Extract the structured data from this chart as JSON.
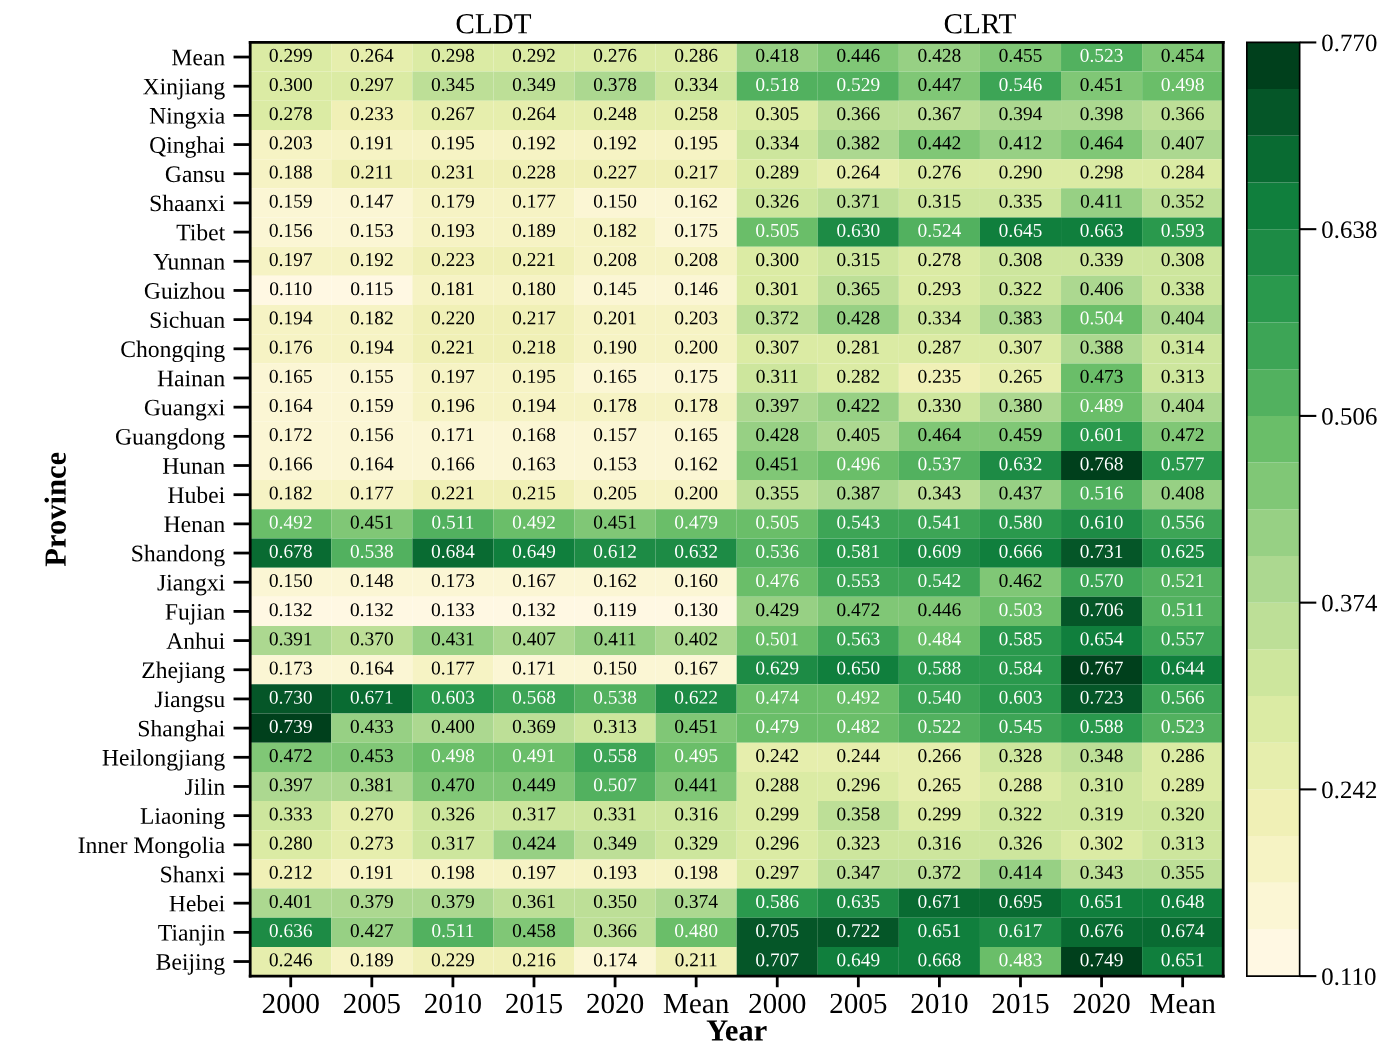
{
  "chart_data": {
    "type": "heatmap",
    "xlabel": "Year",
    "ylabel": "Province",
    "annotations": [
      "CLDT",
      "CLRT"
    ],
    "categories": [
      "2000",
      "2005",
      "2010",
      "2015",
      "2020",
      "Mean",
      "2000",
      "2005",
      "2010",
      "2015",
      "2020",
      "Mean"
    ],
    "y_categories": [
      "Mean",
      "Xinjiang",
      "Ningxia",
      "Qinghai",
      "Gansu",
      "Shaanxi",
      "Tibet",
      "Yunnan",
      "Guizhou",
      "Sichuan",
      "Chongqing",
      "Hainan",
      "Guangxi",
      "Guangdong",
      "Hunan",
      "Hubei",
      "Henan",
      "Shandong",
      "Jiangxi",
      "Fujian",
      "Anhui",
      "Zhejiang",
      "Jiangsu",
      "Shanghai",
      "Heilongjiang",
      "Jilin",
      "Liaoning",
      "Inner Mongolia",
      "Shanxi",
      "Hebei",
      "Tianjin",
      "Beijing"
    ],
    "cells": [
      [
        0.299,
        0.264,
        0.298,
        0.292,
        0.276,
        0.286,
        0.418,
        0.446,
        0.428,
        0.455,
        0.523,
        0.454
      ],
      [
        0.3,
        0.297,
        0.345,
        0.349,
        0.378,
        0.334,
        0.518,
        0.529,
        0.447,
        0.546,
        0.451,
        0.498
      ],
      [
        0.278,
        0.233,
        0.267,
        0.264,
        0.248,
        0.258,
        0.305,
        0.366,
        0.367,
        0.394,
        0.398,
        0.366
      ],
      [
        0.203,
        0.191,
        0.195,
        0.192,
        0.192,
        0.195,
        0.334,
        0.382,
        0.442,
        0.412,
        0.464,
        0.407
      ],
      [
        0.188,
        0.211,
        0.231,
        0.228,
        0.227,
        0.217,
        0.289,
        0.264,
        0.276,
        0.29,
        0.298,
        0.284
      ],
      [
        0.159,
        0.147,
        0.179,
        0.177,
        0.15,
        0.162,
        0.326,
        0.371,
        0.315,
        0.335,
        0.411,
        0.352
      ],
      [
        0.156,
        0.153,
        0.193,
        0.189,
        0.182,
        0.175,
        0.505,
        0.63,
        0.524,
        0.645,
        0.663,
        0.593
      ],
      [
        0.197,
        0.192,
        0.223,
        0.221,
        0.208,
        0.208,
        0.3,
        0.315,
        0.278,
        0.308,
        0.339,
        0.308
      ],
      [
        0.11,
        0.115,
        0.181,
        0.18,
        0.145,
        0.146,
        0.301,
        0.365,
        0.293,
        0.322,
        0.406,
        0.338
      ],
      [
        0.194,
        0.182,
        0.22,
        0.217,
        0.201,
        0.203,
        0.372,
        0.428,
        0.334,
        0.383,
        0.504,
        0.404
      ],
      [
        0.176,
        0.194,
        0.221,
        0.218,
        0.19,
        0.2,
        0.307,
        0.281,
        0.287,
        0.307,
        0.388,
        0.314
      ],
      [
        0.165,
        0.155,
        0.197,
        0.195,
        0.165,
        0.175,
        0.311,
        0.282,
        0.235,
        0.265,
        0.473,
        0.313
      ],
      [
        0.164,
        0.159,
        0.196,
        0.194,
        0.178,
        0.178,
        0.397,
        0.422,
        0.33,
        0.38,
        0.489,
        0.404
      ],
      [
        0.172,
        0.156,
        0.171,
        0.168,
        0.157,
        0.165,
        0.428,
        0.405,
        0.464,
        0.459,
        0.601,
        0.472
      ],
      [
        0.166,
        0.164,
        0.166,
        0.163,
        0.153,
        0.162,
        0.451,
        0.496,
        0.537,
        0.632,
        0.768,
        0.577
      ],
      [
        0.182,
        0.177,
        0.221,
        0.215,
        0.205,
        0.2,
        0.355,
        0.387,
        0.343,
        0.437,
        0.516,
        0.408
      ],
      [
        0.492,
        0.451,
        0.511,
        0.492,
        0.451,
        0.479,
        0.505,
        0.543,
        0.541,
        0.58,
        0.61,
        0.556
      ],
      [
        0.678,
        0.538,
        0.684,
        0.649,
        0.612,
        0.632,
        0.536,
        0.581,
        0.609,
        0.666,
        0.731,
        0.625
      ],
      [
        0.15,
        0.148,
        0.173,
        0.167,
        0.162,
        0.16,
        0.476,
        0.553,
        0.542,
        0.462,
        0.57,
        0.521
      ],
      [
        0.132,
        0.132,
        0.133,
        0.132,
        0.119,
        0.13,
        0.429,
        0.472,
        0.446,
        0.503,
        0.706,
        0.511
      ],
      [
        0.391,
        0.37,
        0.431,
        0.407,
        0.411,
        0.402,
        0.501,
        0.563,
        0.484,
        0.585,
        0.654,
        0.557
      ],
      [
        0.173,
        0.164,
        0.177,
        0.171,
        0.15,
        0.167,
        0.629,
        0.65,
        0.588,
        0.584,
        0.767,
        0.644
      ],
      [
        0.73,
        0.671,
        0.603,
        0.568,
        0.538,
        0.622,
        0.474,
        0.492,
        0.54,
        0.603,
        0.723,
        0.566
      ],
      [
        0.739,
        0.433,
        0.4,
        0.369,
        0.313,
        0.451,
        0.479,
        0.482,
        0.522,
        0.545,
        0.588,
        0.523
      ],
      [
        0.472,
        0.453,
        0.498,
        0.491,
        0.558,
        0.495,
        0.242,
        0.244,
        0.266,
        0.328,
        0.348,
        0.286
      ],
      [
        0.397,
        0.381,
        0.47,
        0.449,
        0.507,
        0.441,
        0.288,
        0.296,
        0.265,
        0.288,
        0.31,
        0.289
      ],
      [
        0.333,
        0.27,
        0.326,
        0.317,
        0.331,
        0.316,
        0.299,
        0.358,
        0.299,
        0.322,
        0.319,
        0.32
      ],
      [
        0.28,
        0.273,
        0.317,
        0.424,
        0.349,
        0.329,
        0.296,
        0.323,
        0.316,
        0.326,
        0.302,
        0.313
      ],
      [
        0.212,
        0.191,
        0.198,
        0.197,
        0.193,
        0.198,
        0.297,
        0.347,
        0.372,
        0.414,
        0.343,
        0.355
      ],
      [
        0.401,
        0.379,
        0.379,
        0.361,
        0.35,
        0.374,
        0.586,
        0.635,
        0.671,
        0.695,
        0.651,
        0.648
      ],
      [
        0.636,
        0.427,
        0.511,
        0.458,
        0.366,
        0.48,
        0.705,
        0.722,
        0.651,
        0.617,
        0.676,
        0.674
      ],
      [
        0.246,
        0.189,
        0.229,
        0.216,
        0.174,
        0.211,
        0.707,
        0.649,
        0.668,
        0.483,
        0.749,
        0.651
      ]
    ],
    "cell_labels": [
      [
        "0.299",
        "0.264",
        "0.298",
        "0.292",
        "0.276",
        "0.286",
        "0.418",
        "0.446",
        "0.428",
        "0.455",
        "0.523",
        "0.454"
      ],
      [
        "0.300",
        "0.297",
        "0.345",
        "0.349",
        "0.378",
        "0.334",
        "0.518",
        "0.529",
        "0.447",
        "0.546",
        "0.451",
        "0.498"
      ],
      [
        "0.278",
        "0.233",
        "0.267",
        "0.264",
        "0.248",
        "0.258",
        "0.305",
        "0.366",
        "0.367",
        "0.394",
        "0.398",
        "0.366"
      ],
      [
        "0.203",
        "0.191",
        "0.195",
        "0.192",
        "0.192",
        "0.195",
        "0.334",
        "0.382",
        "0.442",
        "0.412",
        "0.464",
        "0.407"
      ],
      [
        "0.188",
        "0.211",
        "0.231",
        "0.228",
        "0.227",
        "0.217",
        "0.289",
        "0.264",
        "0.276",
        "0.290",
        "0.298",
        "0.284"
      ],
      [
        "0.159",
        "0.147",
        "0.179",
        "0.177",
        "0.150",
        "0.162",
        "0.326",
        "0.371",
        "0.315",
        "0.335",
        "0.411",
        "0.352"
      ],
      [
        "0.156",
        "0.153",
        "0.193",
        "0.189",
        "0.182",
        "0.175",
        "0.505",
        "0.630",
        "0.524",
        "0.645",
        "0.663",
        "0.593"
      ],
      [
        "0.197",
        "0.192",
        "0.223",
        "0.221",
        "0.208",
        "0.208",
        "0.300",
        "0.315",
        "0.278",
        "0.308",
        "0.339",
        "0.308"
      ],
      [
        "0.110",
        "0.115",
        "0.181",
        "0.180",
        "0.145",
        "0.146",
        "0.301",
        "0.365",
        "0.293",
        "0.322",
        "0.406",
        "0.338"
      ],
      [
        "0.194",
        "0.182",
        "0.220",
        "0.217",
        "0.201",
        "0.203",
        "0.372",
        "0.428",
        "0.334",
        "0.383",
        "0.504",
        "0.404"
      ],
      [
        "0.176",
        "0.194",
        "0.221",
        "0.218",
        "0.190",
        "0.200",
        "0.307",
        "0.281",
        "0.287",
        "0.307",
        "0.388",
        "0.314"
      ],
      [
        "0.165",
        "0.155",
        "0.197",
        "0.195",
        "0.165",
        "0.175",
        "0.311",
        "0.282",
        "0.235",
        "0.265",
        "0.473",
        "0.313"
      ],
      [
        "0.164",
        "0.159",
        "0.196",
        "0.194",
        "0.178",
        "0.178",
        "0.397",
        "0.422",
        "0.330",
        "0.380",
        "0.489",
        "0.404"
      ],
      [
        "0.172",
        "0.156",
        "0.171",
        "0.168",
        "0.157",
        "0.165",
        "0.428",
        "0.405",
        "0.464",
        "0.459",
        "0.601",
        "0.472"
      ],
      [
        "0.166",
        "0.164",
        "0.166",
        "0.163",
        "0.153",
        "0.162",
        "0.451",
        "0.496",
        "0.537",
        "0.632",
        "0.768",
        "0.577"
      ],
      [
        "0.182",
        "0.177",
        "0.221",
        "0.215",
        "0.205",
        "0.200",
        "0.355",
        "0.387",
        "0.343",
        "0.437",
        "0.516",
        "0.408"
      ],
      [
        "0.492",
        "0.451",
        "0.511",
        "0.492",
        "0.451",
        "0.479",
        "0.505",
        "0.543",
        "0.541",
        "0.580",
        "0.610",
        "0.556"
      ],
      [
        "0.678",
        "0.538",
        "0.684",
        "0.649",
        "0.612",
        "0.632",
        "0.536",
        "0.581",
        "0.609",
        "0.666",
        "0.731",
        "0.625"
      ],
      [
        "0.150",
        "0.148",
        "0.173",
        "0.167",
        "0.162",
        "0.160",
        "0.476",
        "0.553",
        "0.542",
        "0.462",
        "0.570",
        "0.521"
      ],
      [
        "0.132",
        "0.132",
        "0.133",
        "0.132",
        "0.119",
        "0.130",
        "0.429",
        "0.472",
        "0.446",
        "0.503",
        "0.706",
        "0.511"
      ],
      [
        "0.391",
        "0.370",
        "0.431",
        "0.407",
        "0.411",
        "0.402",
        "0.501",
        "0.563",
        "0.484",
        "0.585",
        "0.654",
        "0.557"
      ],
      [
        "0.173",
        "0.164",
        "0.177",
        "0.171",
        "0.150",
        "0.167",
        "0.629",
        "0.650",
        "0.588",
        "0.584",
        "0.767",
        "0.644"
      ],
      [
        "0.730",
        "0.671",
        "0.603",
        "0.568",
        "0.538",
        "0.622",
        "0.474",
        "0.492",
        "0.540",
        "0.603",
        "0.723",
        "0.566"
      ],
      [
        "0.739",
        "0.433",
        "0.400",
        "0.369",
        "0.313",
        "0.451",
        "0.479",
        "0.482",
        "0.522",
        "0.545",
        "0.588",
        "0.523"
      ],
      [
        "0.472",
        "0.453",
        "0.498",
        "0.491",
        "0.558",
        "0.495",
        "0.242",
        "0.244",
        "0.266",
        "0.328",
        "0.348",
        "0.286"
      ],
      [
        "0.397",
        "0.381",
        "0.470",
        "0.449",
        "0.507",
        "0.441",
        "0.288",
        "0.296",
        "0.265",
        "0.288",
        "0.310",
        "0.289"
      ],
      [
        "0.333",
        "0.270",
        "0.326",
        "0.317",
        "0.331",
        "0.316",
        "0.299",
        "0.358",
        "0.299",
        "0.322",
        "0.319",
        "0.320"
      ],
      [
        "0.280",
        "0.273",
        "0.317",
        "0.424",
        "0.349",
        "0.329",
        "0.296",
        "0.323",
        "0.316",
        "0.326",
        "0.302",
        "0.313"
      ],
      [
        "0.212",
        "0.191",
        "0.198",
        "0.197",
        "0.193",
        "0.198",
        "0.297",
        "0.347",
        "0.372",
        "0.414",
        "0.343",
        "0.355"
      ],
      [
        "0.401",
        "0.379",
        "0.379",
        "0.361",
        "0.350",
        "0.374",
        "0.586",
        "0.635",
        "0.671",
        "0.695",
        "0.651",
        "0.648"
      ],
      [
        "0.636",
        "0.427",
        "0.511",
        "0.458",
        "0.366",
        "0.480",
        "0.705",
        "0.722",
        "0.651",
        "0.617",
        "0.676",
        "0.674"
      ],
      [
        "0.246",
        "0.189",
        "0.229",
        "0.216",
        "0.174",
        "0.211",
        "0.707",
        "0.649",
        "0.668",
        "0.483",
        "0.749",
        "0.651"
      ]
    ],
    "clim": [
      0.11,
      0.77
    ],
    "cticks": [
      {
        "value": 0.11,
        "label": "0.110"
      },
      {
        "value": 0.242,
        "label": "0.242"
      },
      {
        "value": 0.374,
        "label": "0.374"
      },
      {
        "value": 0.506,
        "label": "0.506"
      },
      {
        "value": 0.638,
        "label": "0.638"
      },
      {
        "value": 0.77,
        "label": "0.770"
      }
    ],
    "data_labels": true
  }
}
